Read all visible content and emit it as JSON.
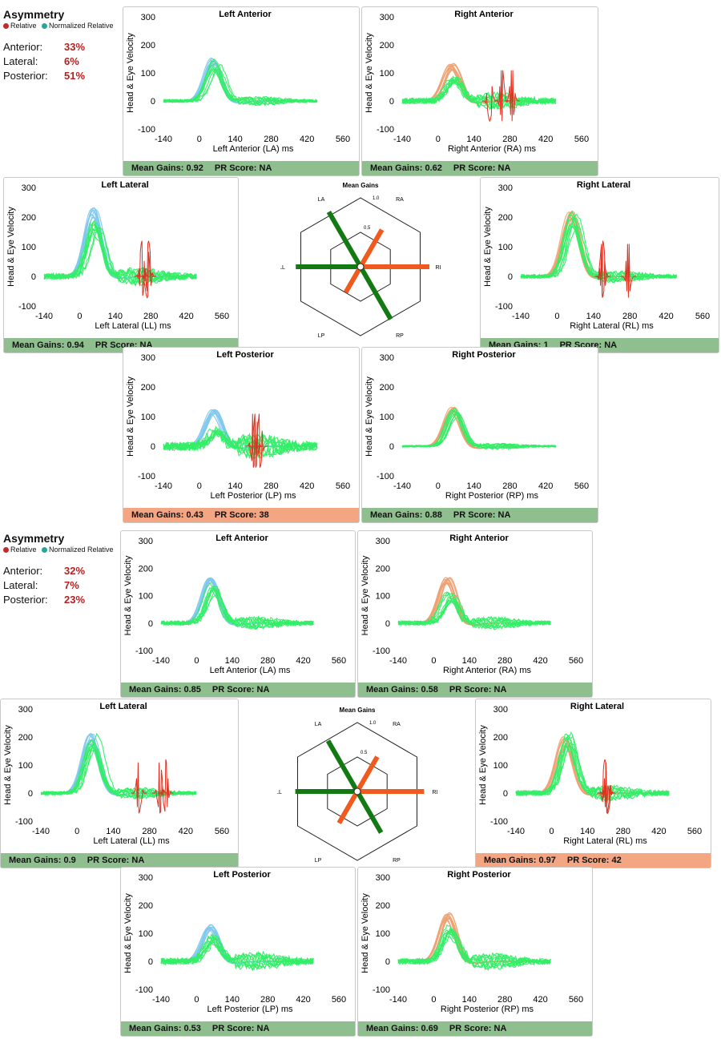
{
  "legend": {
    "relative": "Relative",
    "normalized": "Normalized Relative"
  },
  "colors": {
    "relative_dot": "#c62828",
    "normalized_dot": "#26a69a",
    "ok_footer": "#8fbf8f",
    "alert_footer": "#f4a582",
    "head_blue": "#7ec8ee",
    "head_orange": "#f0a070",
    "eye_green": "#33ee66",
    "saccade_red": "#dd3322",
    "radar_left": "#137a13",
    "radar_right": "#f05a1e"
  },
  "axis": {
    "ylabel": "Head & Eye Velocity",
    "yticks": [
      "300",
      "200",
      "100",
      "0",
      "-100"
    ],
    "xticks": [
      "-140",
      "0",
      "140",
      "280",
      "420",
      "560"
    ]
  },
  "blocks": [
    {
      "asymmetry": {
        "title": "Asymmetry",
        "anterior_label": "Anterior:",
        "anterior": "33%",
        "lateral_label": "Lateral:",
        "lateral": "6%",
        "posterior_label": "Posterior:",
        "posterior": "51%"
      },
      "radar": {
        "title": "Mean Gains",
        "tick_one": "1.0",
        "tick_half": "0.5",
        "labels": {
          "LA": "LA",
          "RA": "RA",
          "LL": "LL",
          "RL": "RL",
          "LP": "LP",
          "RP": "RP"
        },
        "gains": {
          "LA": 0.92,
          "RA": 0.62,
          "LL": 0.94,
          "RL": 1.0,
          "LP": 0.43,
          "RP": 0.88
        }
      },
      "panels": {
        "LA": {
          "title": "Left Anterior",
          "xlabel": "Left Anterior (LA) ms",
          "gain_text": "Mean Gains: 0.92",
          "pr_text": "PR Score: NA",
          "alert": false,
          "head": "blue",
          "head_peak": 150,
          "eye_peak": 135,
          "saccades": false,
          "noise": 0.5
        },
        "RA": {
          "title": "Right Anterior",
          "xlabel": "Right Anterior (RA) ms",
          "gain_text": "Mean Gains: 0.62",
          "pr_text": "PR Score: NA",
          "alert": false,
          "head": "orange",
          "head_peak": 130,
          "eye_peak": 80,
          "saccades": true,
          "noise": 0.9
        },
        "LL": {
          "title": "Left Lateral",
          "xlabel": "Left Lateral (LL) ms",
          "gain_text": "Mean Gains: 0.94",
          "pr_text": "PR Score: NA",
          "alert": false,
          "head": "blue",
          "head_peak": 230,
          "eye_peak": 160,
          "saccades": true,
          "noise": 0.9
        },
        "RL": {
          "title": "Right Lateral",
          "xlabel": "Right Lateral (RL) ms",
          "gain_text": "Mean Gains: 1",
          "pr_text": "PR Score: NA",
          "alert": false,
          "head": "orange",
          "head_peak": 225,
          "eye_peak": 200,
          "saccades": true,
          "noise": 0.6
        },
        "LP": {
          "title": "Left Posterior",
          "xlabel": "Left Posterior (LP) ms",
          "gain_text": "Mean Gains: 0.43",
          "pr_text": "PR Score: 38",
          "alert": true,
          "head": "blue",
          "head_peak": 120,
          "eye_peak": 50,
          "saccades": true,
          "noise": 1.3
        },
        "RP": {
          "title": "Right Posterior",
          "xlabel": "Right Posterior (RP) ms",
          "gain_text": "Mean Gains: 0.88",
          "pr_text": "PR Score: NA",
          "alert": false,
          "head": "orange",
          "head_peak": 130,
          "eye_peak": 115,
          "saccades": false,
          "noise": 0.3
        }
      }
    },
    {
      "asymmetry": {
        "title": "Asymmetry",
        "anterior_label": "Anterior:",
        "anterior": "32%",
        "lateral_label": "Lateral:",
        "lateral": "7%",
        "posterior_label": "Posterior:",
        "posterior": "23%"
      },
      "radar": {
        "title": "Mean Gains",
        "tick_one": "1.0",
        "tick_half": "0.5",
        "labels": {
          "LA": "LA",
          "RA": "RA",
          "LL": "LL",
          "RL": "RL",
          "LP": "LP",
          "RP": "RP"
        },
        "gains": {
          "LA": 0.85,
          "RA": 0.58,
          "LL": 0.9,
          "RL": 0.97,
          "LP": 0.53,
          "RP": 0.69
        }
      },
      "panels": {
        "LA": {
          "title": "Left Anterior",
          "xlabel": "Left Anterior (LA) ms",
          "gain_text": "Mean Gains: 0.85",
          "pr_text": "PR Score: NA",
          "alert": false,
          "head": "blue",
          "head_peak": 160,
          "eye_peak": 125,
          "saccades": false,
          "noise": 0.7
        },
        "RA": {
          "title": "Right Anterior",
          "xlabel": "Right Anterior (RA) ms",
          "gain_text": "Mean Gains: 0.58",
          "pr_text": "PR Score: NA",
          "alert": false,
          "head": "orange",
          "head_peak": 160,
          "eye_peak": 100,
          "saccades": false,
          "noise": 0.7
        },
        "LL": {
          "title": "Left Lateral",
          "xlabel": "Left Lateral (LL) ms",
          "gain_text": "Mean Gains: 0.9",
          "pr_text": "PR Score: NA",
          "alert": false,
          "head": "blue",
          "head_peak": 210,
          "eye_peak": 185,
          "saccades": true,
          "noise": 0.6
        },
        "RL": {
          "title": "Right Lateral",
          "xlabel": "Right Lateral (RL) ms",
          "gain_text": "Mean Gains: 0.97",
          "pr_text": "PR Score: 42",
          "alert": true,
          "head": "orange",
          "head_peak": 195,
          "eye_peak": 185,
          "saccades": true,
          "noise": 0.8
        },
        "LP": {
          "title": "Left Posterior",
          "xlabel": "Left Posterior (LP) ms",
          "gain_text": "Mean Gains: 0.53",
          "pr_text": "PR Score: NA",
          "alert": false,
          "head": "blue",
          "head_peak": 130,
          "eye_peak": 80,
          "saccades": false,
          "noise": 1.0
        },
        "RP": {
          "title": "Right Posterior",
          "xlabel": "Right Posterior (RP) ms",
          "gain_text": "Mean Gains: 0.69",
          "pr_text": "PR Score: NA",
          "alert": false,
          "head": "orange",
          "head_peak": 170,
          "eye_peak": 115,
          "saccades": false,
          "noise": 0.9
        }
      }
    }
  ],
  "chart_data": [
    {
      "type": "radar",
      "title": "Mean Gains",
      "categories": [
        "LA",
        "RA",
        "LL",
        "RL",
        "LP",
        "RP"
      ],
      "values": [
        0.92,
        0.62,
        0.94,
        1.0,
        0.43,
        0.88
      ],
      "range": [
        0,
        1.0
      ]
    },
    {
      "type": "radar",
      "title": "Mean Gains",
      "categories": [
        "LA",
        "RA",
        "LL",
        "RL",
        "LP",
        "RP"
      ],
      "values": [
        0.85,
        0.58,
        0.9,
        0.97,
        0.53,
        0.69
      ],
      "range": [
        0,
        1.0
      ]
    },
    {
      "type": "line",
      "title": "Left Anterior",
      "xlabel": "Left Anterior (LA) ms",
      "ylabel": "Head & Eye Velocity",
      "xlim": [
        -140,
        560
      ],
      "ylim": [
        -100,
        300
      ]
    }
  ]
}
